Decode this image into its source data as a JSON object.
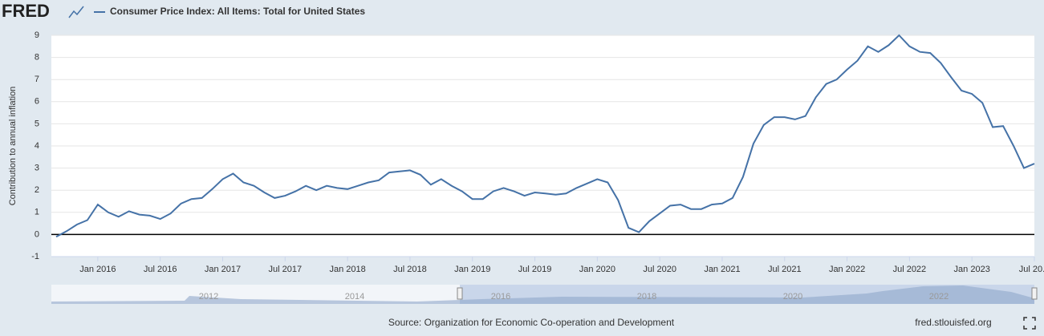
{
  "chart_data": {
    "type": "line",
    "logo": "FRED",
    "y_label": "Contribution to annual inflation",
    "source": "Source: Organization for Economic Co-operation and Development",
    "credit": "fred.stlouisfed.org",
    "x": [
      "2015-09",
      "2015-10",
      "2015-11",
      "2015-12",
      "2016-01",
      "2016-02",
      "2016-03",
      "2016-04",
      "2016-05",
      "2016-06",
      "2016-07",
      "2016-08",
      "2016-09",
      "2016-10",
      "2016-11",
      "2016-12",
      "2017-01",
      "2017-02",
      "2017-03",
      "2017-04",
      "2017-05",
      "2017-06",
      "2017-07",
      "2017-08",
      "2017-09",
      "2017-10",
      "2017-11",
      "2017-12",
      "2018-01",
      "2018-02",
      "2018-03",
      "2018-04",
      "2018-05",
      "2018-06",
      "2018-07",
      "2018-08",
      "2018-09",
      "2018-10",
      "2018-11",
      "2018-12",
      "2019-01",
      "2019-02",
      "2019-03",
      "2019-04",
      "2019-05",
      "2019-06",
      "2019-07",
      "2019-08",
      "2019-09",
      "2019-10",
      "2019-11",
      "2019-12",
      "2020-01",
      "2020-02",
      "2020-03",
      "2020-04",
      "2020-05",
      "2020-06",
      "2020-07",
      "2020-08",
      "2020-09",
      "2020-10",
      "2020-11",
      "2020-12",
      "2021-01",
      "2021-02",
      "2021-03",
      "2021-04",
      "2021-05",
      "2021-06",
      "2021-07",
      "2021-08",
      "2021-09",
      "2021-10",
      "2021-11",
      "2021-12",
      "2022-01",
      "2022-02",
      "2022-03",
      "2022-04",
      "2022-05",
      "2022-06",
      "2022-07",
      "2022-08",
      "2022-09",
      "2022-10",
      "2022-11",
      "2022-12",
      "2023-01",
      "2023-02",
      "2023-03",
      "2023-04",
      "2023-05",
      "2023-06",
      "2023-07"
    ],
    "series": [
      {
        "name": "Consumer Price Index: All Items: Total for United States",
        "color": "#4572a7",
        "values": [
          -0.1,
          0.15,
          0.45,
          0.65,
          1.35,
          1.0,
          0.8,
          1.05,
          0.9,
          0.85,
          0.7,
          0.95,
          1.4,
          1.6,
          1.65,
          2.05,
          2.5,
          2.75,
          2.35,
          2.2,
          1.9,
          1.65,
          1.75,
          1.95,
          2.2,
          2.0,
          2.2,
          2.1,
          2.05,
          2.2,
          2.35,
          2.45,
          2.8,
          2.85,
          2.9,
          2.7,
          2.25,
          2.5,
          2.2,
          1.95,
          1.6,
          1.6,
          1.95,
          2.1,
          1.95,
          1.75,
          1.9,
          1.85,
          1.8,
          1.85,
          2.1,
          2.3,
          2.5,
          2.35,
          1.55,
          0.3,
          0.1,
          0.6,
          0.95,
          1.3,
          1.35,
          1.15,
          1.15,
          1.35,
          1.4,
          1.65,
          2.6,
          4.1,
          4.95,
          5.3,
          5.3,
          5.2,
          5.35,
          6.2,
          6.8,
          7.0,
          7.45,
          7.85,
          8.5,
          8.25,
          8.55,
          9.0,
          8.5,
          8.25,
          8.2,
          7.75,
          7.1,
          6.5,
          6.35,
          5.95,
          4.85,
          4.9,
          4.0,
          3.0,
          3.2
        ]
      }
    ],
    "xlim": [
      "2015-09",
      "2023-07"
    ],
    "xticks": [
      {
        "value": "2016-01",
        "label": "Jan 2016"
      },
      {
        "value": "2016-07",
        "label": "Jul 2016"
      },
      {
        "value": "2017-01",
        "label": "Jan 2017"
      },
      {
        "value": "2017-07",
        "label": "Jul 2017"
      },
      {
        "value": "2018-01",
        "label": "Jan 2018"
      },
      {
        "value": "2018-07",
        "label": "Jul 2018"
      },
      {
        "value": "2019-01",
        "label": "Jan 2019"
      },
      {
        "value": "2019-07",
        "label": "Jul 2019"
      },
      {
        "value": "2020-01",
        "label": "Jan 2020"
      },
      {
        "value": "2020-07",
        "label": "Jul 2020"
      },
      {
        "value": "2021-01",
        "label": "Jan 2021"
      },
      {
        "value": "2021-07",
        "label": "Jul 2021"
      },
      {
        "value": "2022-01",
        "label": "Jan 2022"
      },
      {
        "value": "2022-07",
        "label": "Jul 2022"
      },
      {
        "value": "2023-01",
        "label": "Jan 2023"
      },
      {
        "value": "2023-07",
        "label": "Jul 20..."
      }
    ],
    "ylim": [
      -1,
      9
    ],
    "yticks": [
      -1,
      0,
      1,
      2,
      3,
      4,
      5,
      6,
      7,
      8,
      9
    ],
    "grid": true,
    "navigator_labels": [
      "2012",
      "2014",
      "2016",
      "2018",
      "2020",
      "2022"
    ]
  }
}
